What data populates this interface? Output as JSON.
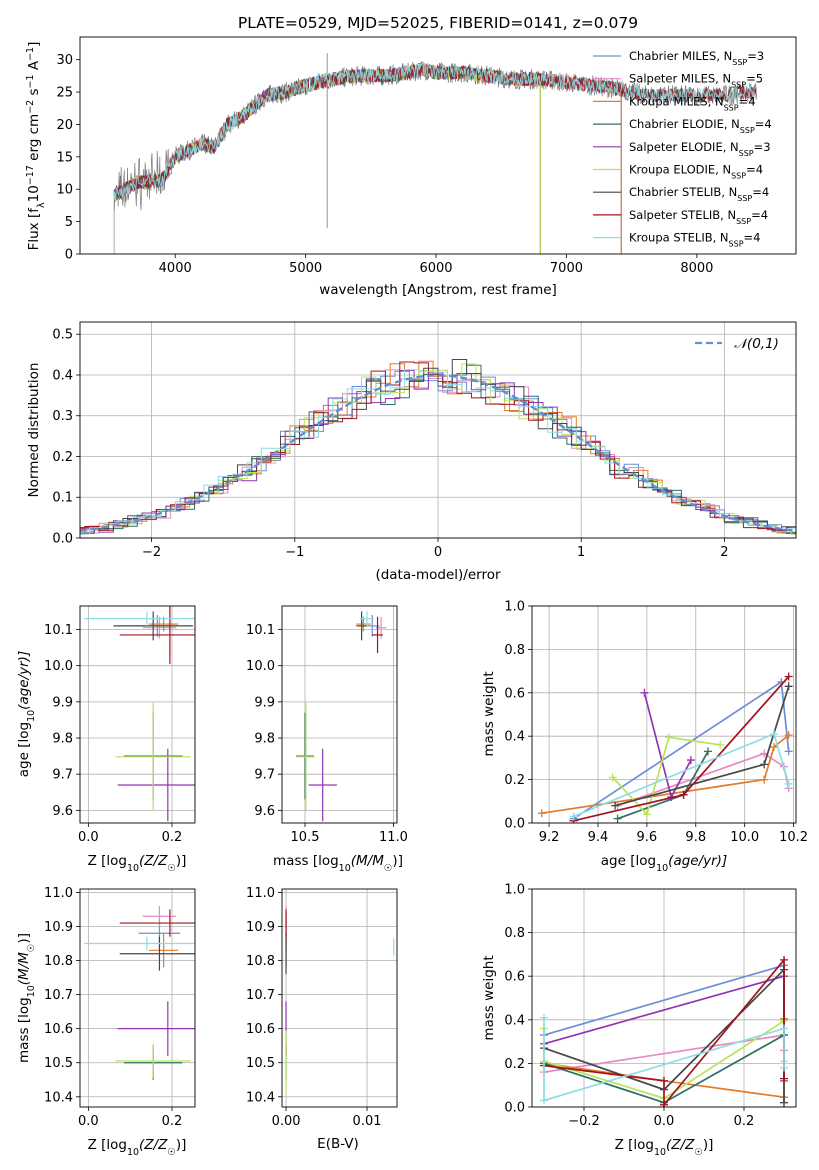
{
  "colors": {
    "Chabrier MILES": "#6a8fd8",
    "Salpeter MILES": "#e78ac3",
    "Kroupa MILES": "#e07b28",
    "Chabrier ELODIE": "#2f6f63",
    "Salpeter ELODIE": "#9234b0",
    "Kroupa ELODIE": "#b9e35a",
    "Chabrier STELIB": "#474747",
    "Salpeter STELIB": "#a3151e",
    "Kroupa STELIB": "#8edce4"
  },
  "chart_data": [
    {
      "id": "spectrum",
      "type": "line",
      "title": "PLATE=0529, MJD=52025, FIBERID=0141, z=0.079",
      "xlabel": "wavelength [Angstrom, rest frame]",
      "ylabel_parts": [
        "Flux [f",
        "λ",
        "10",
        "−17",
        " erg cm",
        "−2",
        " s",
        "−1",
        " A",
        "−1",
        "]"
      ],
      "xlim": [
        3270,
        8760
      ],
      "ylim": [
        0,
        33.5
      ],
      "xticks": [
        4000,
        5000,
        6000,
        7000,
        8000
      ],
      "yticks": [
        0,
        5,
        10,
        15,
        20,
        25,
        30
      ],
      "grid": false,
      "legend_position": "right",
      "continuum": [
        [
          3530,
          9
        ],
        [
          3700,
          11
        ],
        [
          3900,
          11.5
        ],
        [
          4000,
          15
        ],
        [
          4200,
          17
        ],
        [
          4300,
          16.5
        ],
        [
          4400,
          20
        ],
        [
          4500,
          21
        ],
        [
          4700,
          24.5
        ],
        [
          4850,
          25
        ],
        [
          5000,
          26
        ],
        [
          5200,
          27
        ],
        [
          5400,
          27.5
        ],
        [
          5600,
          27.5
        ],
        [
          5800,
          28
        ],
        [
          5900,
          28.5
        ],
        [
          6000,
          28
        ],
        [
          6200,
          28
        ],
        [
          6400,
          27.5
        ],
        [
          6600,
          27
        ],
        [
          6800,
          27
        ],
        [
          7000,
          26.5
        ],
        [
          7200,
          26
        ],
        [
          7400,
          25.5
        ],
        [
          7600,
          24.5
        ],
        [
          7800,
          24.5
        ],
        [
          8000,
          24.5
        ],
        [
          8200,
          24.5
        ],
        [
          8400,
          25
        ],
        [
          8460,
          25
        ]
      ],
      "series": [
        {
          "name": "Chabrier MILES",
          "nssp": "3",
          "xmax": 7420
        },
        {
          "name": "Salpeter MILES",
          "nssp": "5",
          "xmax": 7420
        },
        {
          "name": "Kroupa MILES",
          "nssp": "4",
          "xmax": 7420
        },
        {
          "name": "Chabrier ELODIE",
          "nssp": "4",
          "xmax": 6800
        },
        {
          "name": "Salpeter ELODIE",
          "nssp": "3",
          "xmax": 6800
        },
        {
          "name": "Kroupa ELODIE",
          "nssp": "4",
          "xmax": 6800
        },
        {
          "name": "Chabrier STELIB",
          "nssp": "4",
          "xmax": 8460
        },
        {
          "name": "Salpeter STELIB",
          "nssp": "4",
          "xmax": 8460
        },
        {
          "name": "Kroupa STELIB",
          "nssp": "4",
          "xmax": 8460
        }
      ]
    },
    {
      "id": "residuals",
      "type": "histogram",
      "xlabel": "(data-model)/error",
      "ylabel": "Normed distribution",
      "xlim": [
        -2.5,
        2.5
      ],
      "ylim": [
        0,
        0.53
      ],
      "xticks": [
        -2,
        -1,
        0,
        1,
        2
      ],
      "yticks": [
        0.0,
        0.1,
        0.2,
        0.3,
        0.4,
        0.5
      ],
      "grid": true,
      "legend": "𝒩(0,1)",
      "legend_position": "top-right",
      "bin_width": 0.1
    },
    {
      "id": "age-vs-Z",
      "type": "scatter",
      "xlabel_parts": [
        "Z [log",
        "10",
        "(Z/Z",
        "☉",
        ")]"
      ],
      "ylabel_parts": [
        "age  [log",
        "10",
        "(age/yr)]"
      ],
      "xlim": [
        -0.02,
        0.255
      ],
      "ylim": [
        9.565,
        10.165
      ],
      "xticks": [
        0.0,
        0.2
      ],
      "yticks": [
        9.6,
        9.7,
        9.8,
        9.9,
        10.0,
        10.1
      ],
      "grid": true,
      "points": [
        {
          "series": "Chabrier MILES",
          "x": 0.165,
          "xerr": 0.05,
          "y": 10.11,
          "yerr": 0.03
        },
        {
          "series": "Salpeter MILES",
          "x": 0.17,
          "xerr": 0.04,
          "y": 10.105,
          "yerr": 0.03
        },
        {
          "series": "Kroupa MILES",
          "x": 0.18,
          "xerr": 0.035,
          "y": 10.115,
          "yerr": 0.02
        },
        {
          "series": "Chabrier ELODIE",
          "x": 0.155,
          "xerr": 0.07,
          "y": 9.75,
          "yerr": 0.12
        },
        {
          "series": "Salpeter ELODIE",
          "x": 0.19,
          "xerr": 0.12,
          "y": 9.67,
          "yerr": 0.1
        },
        {
          "series": "Kroupa ELODIE",
          "x": 0.155,
          "xerr": 0.09,
          "y": 9.748,
          "yerr": 0.15
        },
        {
          "series": "Chabrier STELIB",
          "x": 0.155,
          "xerr": 0.095,
          "y": 10.11,
          "yerr": 0.04
        },
        {
          "series": "Salpeter STELIB",
          "x": 0.195,
          "xerr": 0.12,
          "y": 10.085,
          "yerr": 0.08
        },
        {
          "series": "Kroupa STELIB",
          "x": 0.14,
          "xerr": 0.15,
          "y": 10.13,
          "yerr": 0.02
        }
      ]
    },
    {
      "id": "age-vs-mass",
      "type": "scatter",
      "xlabel_parts": [
        "mass [log",
        "10",
        "(M/M",
        "☉",
        ")]"
      ],
      "ylabel": "",
      "xlim": [
        10.37,
        11.02
      ],
      "ylim": [
        9.565,
        10.165
      ],
      "xticks": [
        10.5,
        11.0
      ],
      "yticks": [
        9.6,
        9.7,
        9.8,
        9.9,
        10.0,
        10.1
      ],
      "grid": true,
      "points": [
        {
          "series": "Chabrier MILES",
          "x": 10.88,
          "xerr": 0.04,
          "y": 10.11,
          "yerr": 0.03
        },
        {
          "series": "Salpeter MILES",
          "x": 10.93,
          "xerr": 0.03,
          "y": 10.105,
          "yerr": 0.03
        },
        {
          "series": "Kroupa MILES",
          "x": 10.83,
          "xerr": 0.04,
          "y": 10.115,
          "yerr": 0.02
        },
        {
          "series": "Chabrier ELODIE",
          "x": 10.5,
          "xerr": 0.05,
          "y": 9.75,
          "yerr": 0.12
        },
        {
          "series": "Salpeter ELODIE",
          "x": 10.6,
          "xerr": 0.08,
          "y": 9.67,
          "yerr": 0.1
        },
        {
          "series": "Kroupa ELODIE",
          "x": 10.505,
          "xerr": 0.05,
          "y": 9.748,
          "yerr": 0.15
        },
        {
          "series": "Chabrier STELIB",
          "x": 10.82,
          "xerr": 0.03,
          "y": 10.11,
          "yerr": 0.04
        },
        {
          "series": "Salpeter STELIB",
          "x": 10.91,
          "xerr": 0.03,
          "y": 10.085,
          "yerr": 0.05
        },
        {
          "series": "Kroupa STELIB",
          "x": 10.85,
          "xerr": 0.04,
          "y": 10.13,
          "yerr": 0.02
        }
      ]
    },
    {
      "id": "weight-vs-age",
      "type": "line",
      "xlabel_parts": [
        "age  [log",
        "10",
        "(age/yr)]"
      ],
      "ylabel": "mass weight",
      "xlim": [
        9.13,
        10.21
      ],
      "ylim": [
        0,
        1.0
      ],
      "xticks": [
        9.2,
        9.4,
        9.6,
        9.8,
        10.0,
        10.2
      ],
      "yticks": [
        0.0,
        0.2,
        0.4,
        0.6,
        0.8,
        1.0
      ],
      "grid": true,
      "series": [
        {
          "name": "Chabrier MILES",
          "x": [
            9.3,
            10.15,
            10.18
          ],
          "y": [
            0.02,
            0.65,
            0.33
          ]
        },
        {
          "name": "Salpeter MILES",
          "x": [
            9.48,
            10.08,
            10.16,
            10.18
          ],
          "y": [
            0.08,
            0.32,
            0.26,
            0.16
          ]
        },
        {
          "name": "Kroupa MILES",
          "x": [
            9.17,
            10.08,
            10.12,
            10.18
          ],
          "y": [
            0.045,
            0.2,
            0.35,
            0.405
          ]
        },
        {
          "name": "Chabrier ELODIE",
          "x": [
            9.48,
            9.75,
            9.85
          ],
          "y": [
            0.02,
            0.13,
            0.33
          ]
        },
        {
          "name": "Salpeter ELODIE",
          "x": [
            9.59,
            9.7,
            9.78
          ],
          "y": [
            0.6,
            0.12,
            0.29
          ]
        },
        {
          "name": "Kroupa ELODIE",
          "x": [
            9.46,
            9.6,
            9.69,
            9.9
          ],
          "y": [
            0.21,
            0.04,
            0.395,
            0.36
          ]
        },
        {
          "name": "Chabrier STELIB",
          "x": [
            9.47,
            10.08,
            10.18
          ],
          "y": [
            0.08,
            0.27,
            0.63
          ]
        },
        {
          "name": "Salpeter STELIB",
          "x": [
            9.3,
            9.75,
            10.18
          ],
          "y": [
            0.01,
            0.13,
            0.675
          ]
        },
        {
          "name": "Kroupa STELIB",
          "x": [
            9.3,
            10.12,
            10.18
          ],
          "y": [
            0.03,
            0.41,
            0.18
          ]
        }
      ]
    },
    {
      "id": "mass-vs-Z",
      "type": "scatter",
      "xlabel_parts": [
        "Z [log",
        "10",
        "(Z/Z",
        "☉",
        ")]"
      ],
      "ylabel_parts": [
        "mass [log",
        "10",
        "(M/M",
        "☉",
        ")]"
      ],
      "xlim": [
        -0.02,
        0.255
      ],
      "ylim": [
        10.37,
        11.01
      ],
      "xticks": [
        0.0,
        0.2
      ],
      "yticks": [
        10.4,
        10.5,
        10.6,
        10.7,
        10.8,
        10.9,
        11.0
      ],
      "grid": true,
      "points": [
        {
          "series": "Chabrier MILES",
          "x": 0.17,
          "xerr": 0.05,
          "y": 10.88,
          "yerr": 0.05
        },
        {
          "series": "Salpeter MILES",
          "x": 0.17,
          "xerr": 0.04,
          "y": 10.93,
          "yerr": 0.03
        },
        {
          "series": "Kroupa MILES",
          "x": 0.18,
          "xerr": 0.035,
          "y": 10.83,
          "yerr": 0.05
        },
        {
          "series": "Chabrier ELODIE",
          "x": 0.155,
          "xerr": 0.07,
          "y": 10.5,
          "yerr": 0.05
        },
        {
          "series": "Salpeter ELODIE",
          "x": 0.19,
          "xerr": 0.12,
          "y": 10.6,
          "yerr": 0.08
        },
        {
          "series": "Kroupa ELODIE",
          "x": 0.155,
          "xerr": 0.09,
          "y": 10.505,
          "yerr": 0.05
        },
        {
          "series": "Chabrier STELIB",
          "x": 0.17,
          "xerr": 0.095,
          "y": 10.82,
          "yerr": 0.05
        },
        {
          "series": "Salpeter STELIB",
          "x": 0.195,
          "xerr": 0.12,
          "y": 10.91,
          "yerr": 0.04
        },
        {
          "series": "Kroupa STELIB",
          "x": 0.14,
          "xerr": 0.15,
          "y": 10.85,
          "yerr": 0.02
        }
      ]
    },
    {
      "id": "mass-vs-ebv",
      "type": "scatter",
      "xlabel": "E(B-V)",
      "ylabel": "",
      "xlim": [
        -0.0005,
        0.0137
      ],
      "ylim": [
        10.37,
        11.01
      ],
      "xticks": [
        0.0,
        0.01
      ],
      "yticks": [
        10.4,
        10.5,
        10.6,
        10.7,
        10.8,
        10.9,
        11.0
      ],
      "grid": true,
      "points": [
        {
          "series": "Chabrier MILES",
          "x": 0.0,
          "xerr": 0.0,
          "y": 10.88,
          "yerr": 0.05
        },
        {
          "series": "Salpeter MILES",
          "x": 0.0,
          "xerr": 0.0,
          "y": 10.93,
          "yerr": 0.03
        },
        {
          "series": "Kroupa MILES",
          "x": 0.0,
          "xerr": 0.0,
          "y": 10.83,
          "yerr": 0.05
        },
        {
          "series": "Chabrier ELODIE",
          "x": 0.0,
          "xerr": 0.0,
          "y": 10.5,
          "yerr": 0.05
        },
        {
          "series": "Salpeter ELODIE",
          "x": 0.0,
          "xerr": 0.0,
          "y": 10.6,
          "yerr": 0.08
        },
        {
          "series": "Kroupa ELODIE",
          "x": 0.0,
          "xerr": 0.0,
          "y": 10.505,
          "yerr": 0.09
        },
        {
          "series": "Chabrier STELIB",
          "x": 0.0,
          "xerr": 0.0,
          "y": 10.82,
          "yerr": 0.06
        },
        {
          "series": "Salpeter STELIB",
          "x": 0.0,
          "xerr": 0.0,
          "y": 10.91,
          "yerr": 0.04
        },
        {
          "series": "Kroupa STELIB",
          "x": 0.0133,
          "xerr": 0.0,
          "y": 10.84,
          "yerr": 0.025
        }
      ]
    },
    {
      "id": "weight-vs-Z",
      "type": "line",
      "xlabel_parts": [
        "Z [log",
        "10",
        "(Z/Z",
        "☉",
        ")]"
      ],
      "ylabel": "mass weight",
      "xlim": [
        -0.33,
        0.33
      ],
      "ylim": [
        0,
        1.0
      ],
      "xticks": [
        -0.2,
        0.0,
        0.2
      ],
      "yticks": [
        0.0,
        0.2,
        0.4,
        0.6,
        0.8,
        1.0
      ],
      "grid": true,
      "series": [
        {
          "name": "Chabrier MILES",
          "x": [
            -0.3,
            0.3,
            0.3
          ],
          "y": [
            0.33,
            0.65,
            0.02
          ]
        },
        {
          "name": "Salpeter MILES",
          "x": [
            -0.3,
            0.3,
            0.3
          ],
          "y": [
            0.16,
            0.33,
            0.26
          ]
        },
        {
          "name": "Kroupa MILES",
          "x": [
            -0.3,
            0.0,
            0.3,
            0.3
          ],
          "y": [
            0.2,
            0.12,
            0.045,
            0.405
          ]
        },
        {
          "name": "Chabrier ELODIE",
          "x": [
            -0.3,
            0.0,
            0.3
          ],
          "y": [
            0.2,
            0.02,
            0.33
          ]
        },
        {
          "name": "Salpeter ELODIE",
          "x": [
            -0.3,
            0.3,
            0.3
          ],
          "y": [
            0.29,
            0.6,
            0.12
          ]
        },
        {
          "name": "Kroupa ELODIE",
          "x": [
            -0.3,
            -0.3,
            0.0,
            0.3,
            0.3
          ],
          "y": [
            0.36,
            0.21,
            0.04,
            0.395,
            0.21
          ]
        },
        {
          "name": "Chabrier STELIB",
          "x": [
            -0.3,
            0.0,
            0.3,
            0.3
          ],
          "y": [
            0.27,
            0.08,
            0.63,
            0.02
          ]
        },
        {
          "name": "Salpeter STELIB",
          "x": [
            -0.3,
            0.0,
            0.0,
            0.3,
            0.3
          ],
          "y": [
            0.19,
            0.12,
            0.01,
            0.675,
            0.13
          ]
        },
        {
          "name": "Kroupa STELIB",
          "x": [
            -0.3,
            -0.3,
            0.3,
            0.3
          ],
          "y": [
            0.41,
            0.03,
            0.36,
            0.18
          ]
        }
      ]
    }
  ]
}
